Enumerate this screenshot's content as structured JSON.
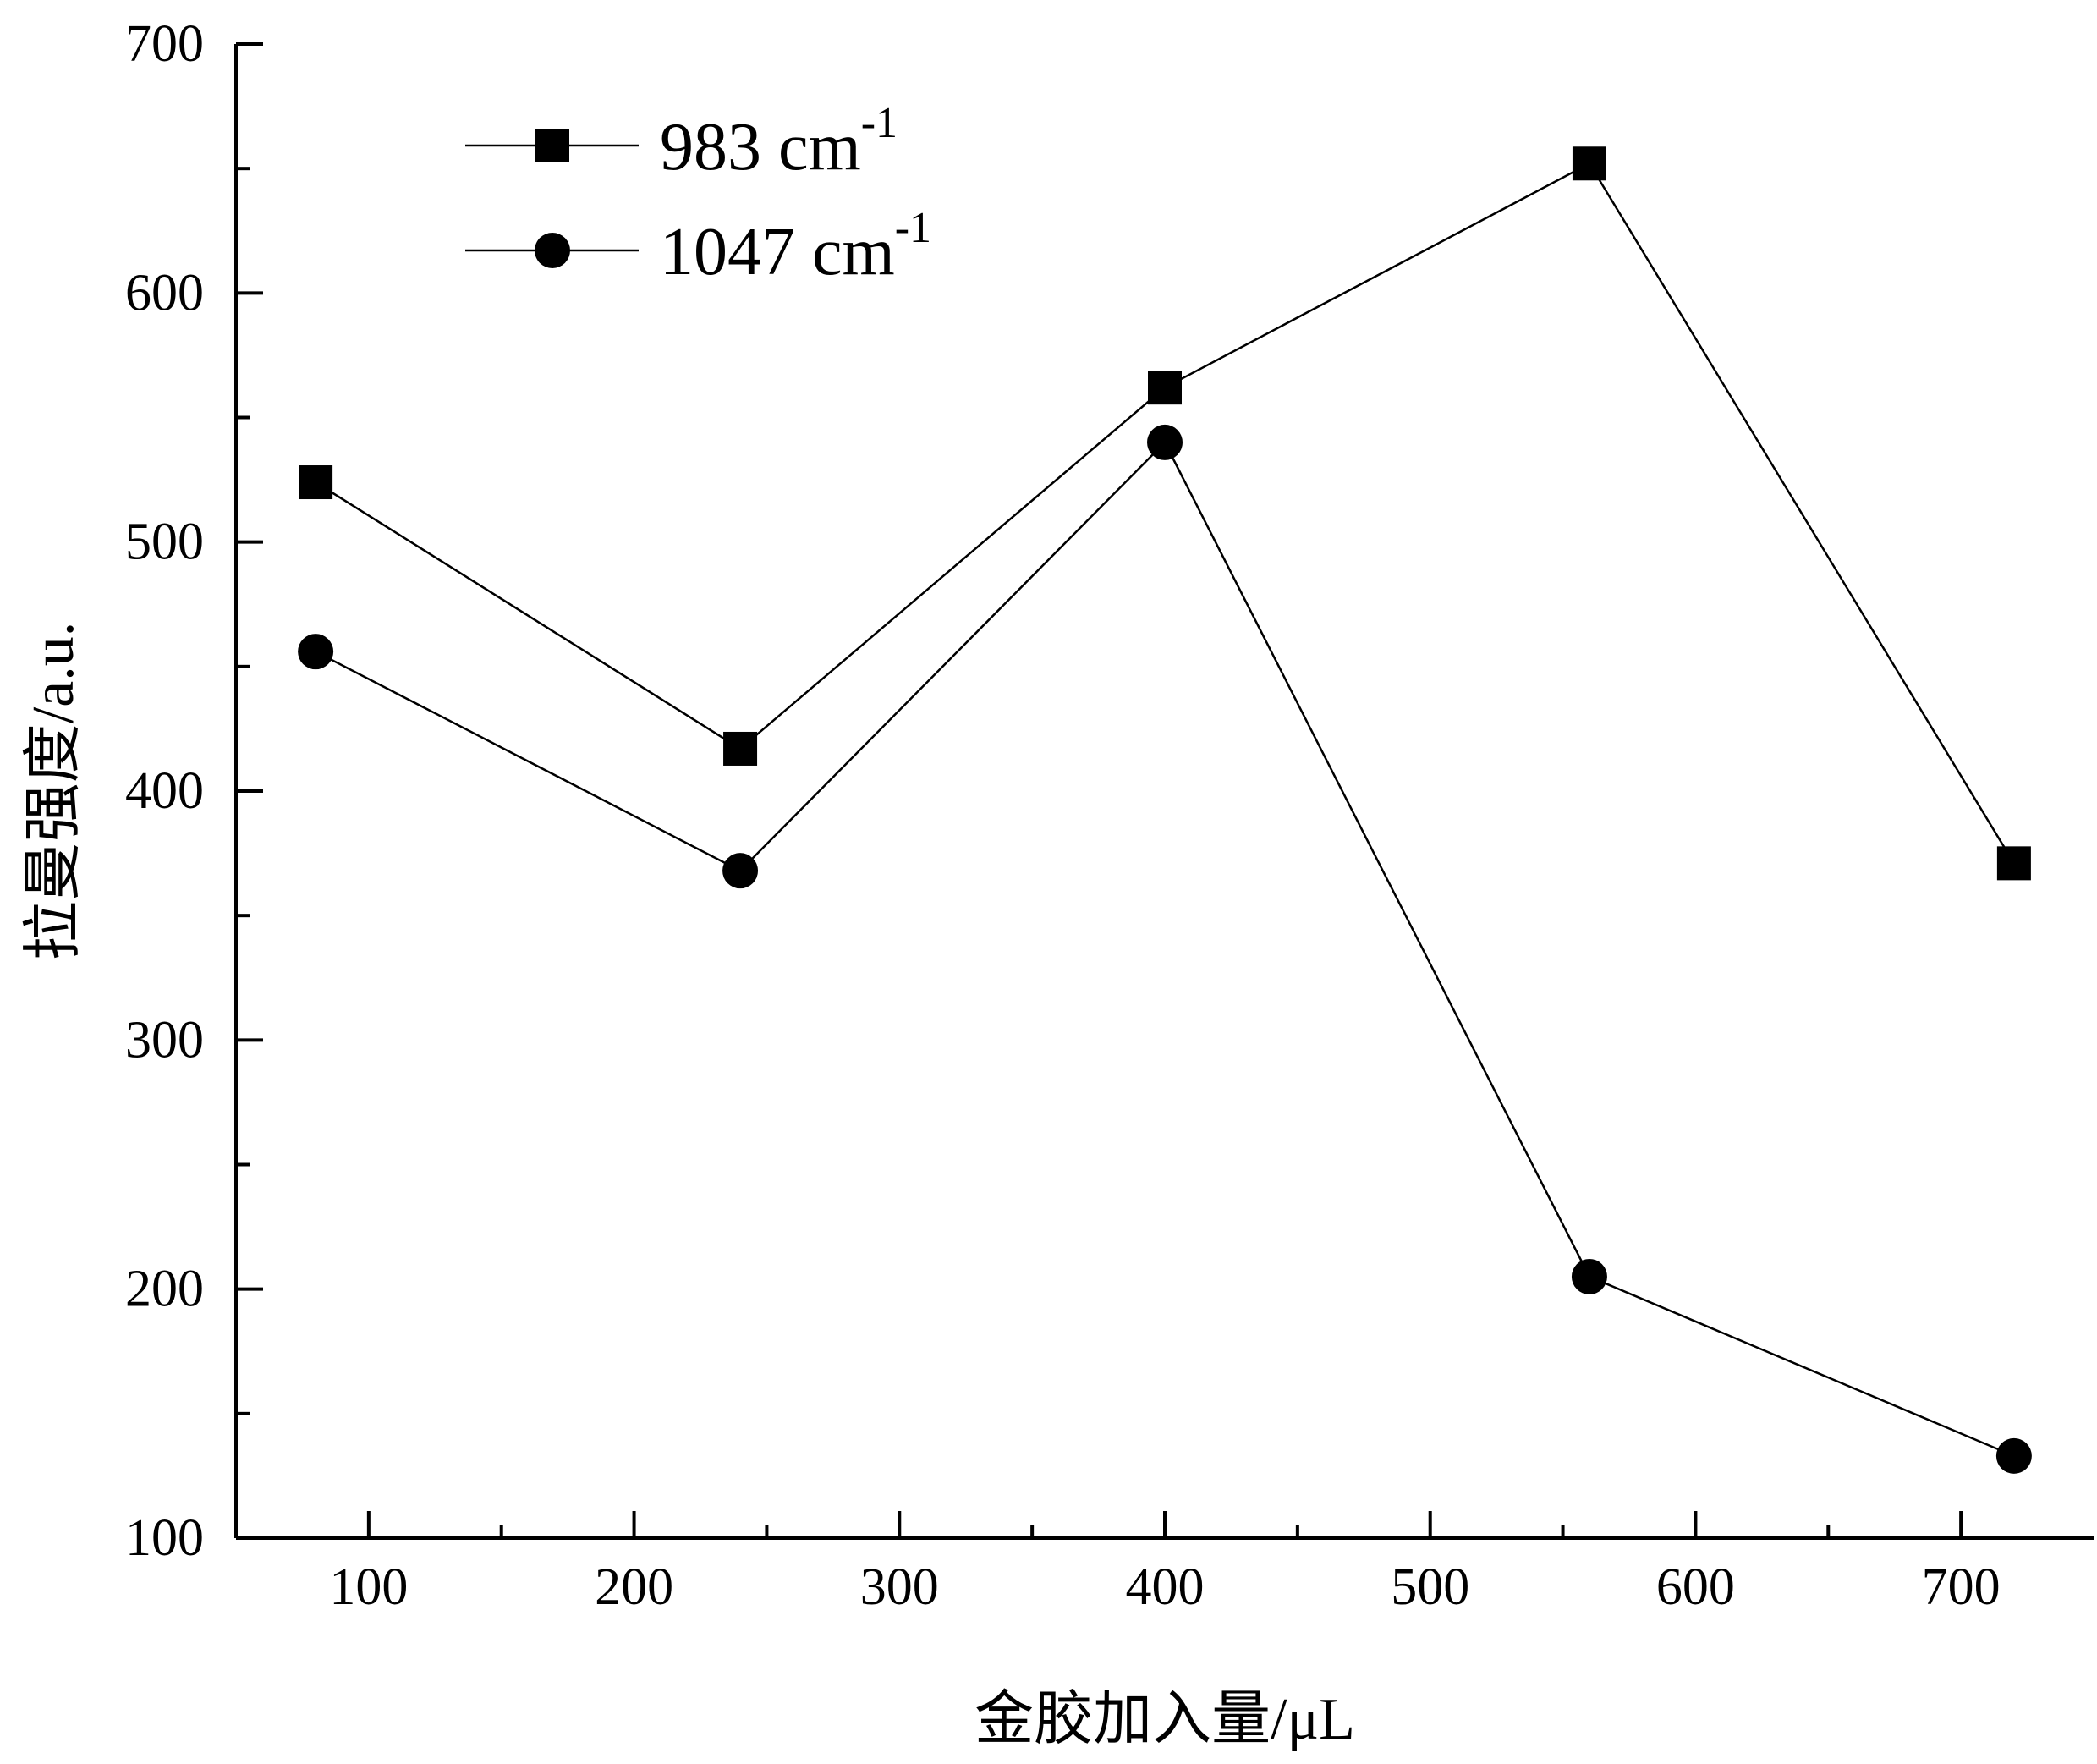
{
  "chart_data": {
    "type": "line",
    "title": "",
    "xlabel": "金胶加入量/μL",
    "ylabel": "拉曼强度/a.u.",
    "xlim": [
      50,
      750
    ],
    "ylim": [
      100,
      700
    ],
    "xticks": [
      100,
      200,
      300,
      400,
      500,
      600,
      700
    ],
    "xticks_minor": [
      150,
      250,
      350,
      450,
      550,
      650
    ],
    "yticks": [
      100,
      200,
      300,
      400,
      500,
      600,
      700
    ],
    "yticks_minor": [
      150,
      250,
      350,
      450,
      550,
      650
    ],
    "grid": false,
    "legend_position": "top-left",
    "series": [
      {
        "name": "983 cm",
        "name_sup": "-1",
        "marker": "square",
        "x": [
          80,
          240,
          400,
          560,
          720
        ],
        "y": [
          524,
          417,
          562,
          652,
          371
        ]
      },
      {
        "name": "1047 cm",
        "name_sup": "-1",
        "marker": "circle",
        "x": [
          80,
          240,
          400,
          560,
          720
        ],
        "y": [
          456,
          368,
          540,
          205,
          133
        ]
      }
    ]
  }
}
